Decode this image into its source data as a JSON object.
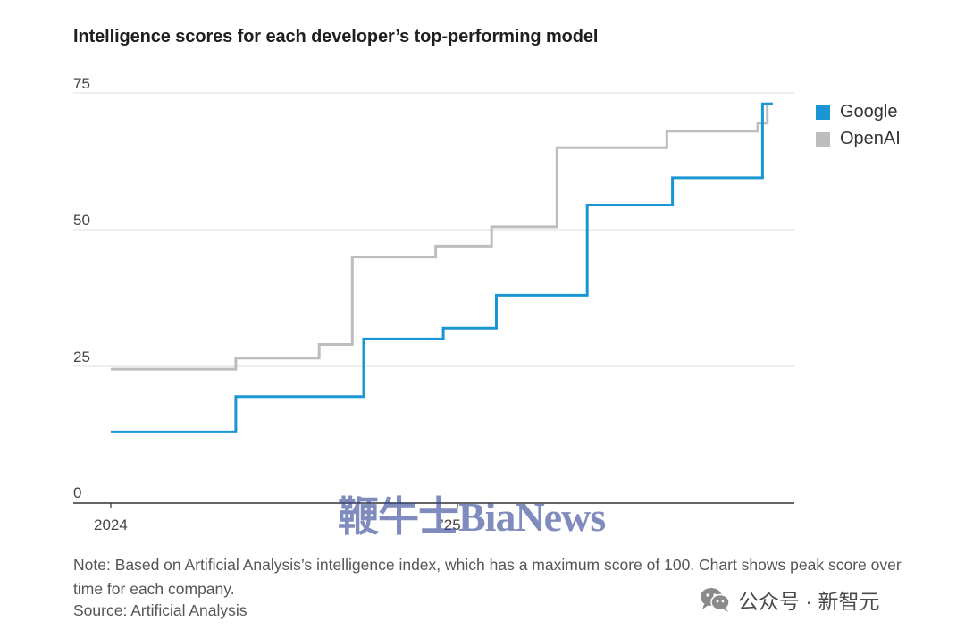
{
  "title": "Intelligence scores for each developer’s top-performing model",
  "chart_data": {
    "type": "line",
    "step": true,
    "title": "Intelligence scores for each developer’s top-performing model",
    "y_ticks": [
      "75",
      "50",
      "25",
      "0"
    ],
    "x_ticks": [
      {
        "label": "2024",
        "x": "2024-01-01"
      },
      {
        "label": "’25",
        "x": "2025-01-01"
      }
    ],
    "ylim": [
      0,
      75
    ],
    "xlim": [
      "2024-01-01",
      "2025-12-31"
    ],
    "grid": true,
    "legend_position": "top-right",
    "series": [
      {
        "name": "Google",
        "color": "#1a96d4",
        "points": [
          [
            "2024-01-01",
            13
          ],
          [
            "2024-05-12",
            13
          ],
          [
            "2024-05-12",
            19.5
          ],
          [
            "2024-09-24",
            19.5
          ],
          [
            "2024-09-24",
            30
          ],
          [
            "2024-12-17",
            30
          ],
          [
            "2024-12-17",
            32
          ],
          [
            "2025-02-11",
            32
          ],
          [
            "2025-02-11",
            38
          ],
          [
            "2025-05-18",
            38
          ],
          [
            "2025-05-18",
            54.5
          ],
          [
            "2025-08-16",
            54.5
          ],
          [
            "2025-08-16",
            59.5
          ],
          [
            "2025-11-19",
            59.5
          ],
          [
            "2025-11-19",
            73
          ],
          [
            "2025-11-30",
            73
          ]
        ]
      },
      {
        "name": "OpenAI",
        "color": "#bdbdbd",
        "points": [
          [
            "2024-01-01",
            24.5
          ],
          [
            "2024-05-12",
            24.5
          ],
          [
            "2024-05-12",
            26.5
          ],
          [
            "2024-08-08",
            26.5
          ],
          [
            "2024-08-08",
            29
          ],
          [
            "2024-09-12",
            29
          ],
          [
            "2024-09-12",
            45
          ],
          [
            "2024-12-09",
            45
          ],
          [
            "2024-12-09",
            47
          ],
          [
            "2025-02-06",
            47
          ],
          [
            "2025-02-06",
            50.5
          ],
          [
            "2025-04-16",
            50.5
          ],
          [
            "2025-04-16",
            65
          ],
          [
            "2025-08-10",
            65
          ],
          [
            "2025-08-10",
            68
          ],
          [
            "2025-11-14",
            68
          ],
          [
            "2025-11-14",
            69.5
          ],
          [
            "2025-11-24",
            69.5
          ],
          [
            "2025-11-24",
            73
          ],
          [
            "2025-11-30",
            73
          ]
        ]
      }
    ],
    "note": "Note: Based on Artificial Analysis’s intelligence index, which has a maximum score of 100. Chart shows peak score over time for each company.",
    "source": "Source: Artificial Analysis"
  },
  "legend": [
    {
      "name": "Google",
      "color": "#1a96d4"
    },
    {
      "name": "OpenAI",
      "color": "#bdbdbd"
    }
  ],
  "watermarks": {
    "center": "鞭牛士BiaNews",
    "corner": "公众号 · 新智元",
    "corner_icon": "wechat-icon"
  }
}
